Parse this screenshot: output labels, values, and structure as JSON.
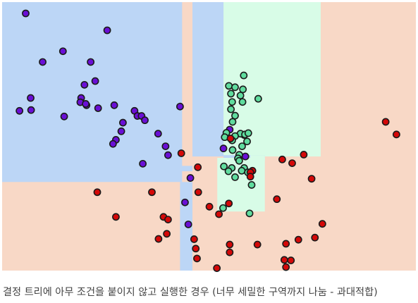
{
  "caption": "결정 트리에 아무 조건을 붙이지 않고 실행한 경우 (너무 세밀한 구역까지 나눔 - 과대적합)",
  "colors": {
    "class_0_point": "#6a0fd6",
    "class_1_point": "#5fdc9e",
    "class_2_point": "#d40808",
    "class_0_region": "#bcd6f6",
    "class_1_region": "#d8fce7",
    "class_2_region": "#f8d8c6",
    "point_edge": "#1a1a1a"
  },
  "chart_data": {
    "type": "scatter",
    "title": "",
    "xlabel": "",
    "ylabel": "",
    "xlim": [
      0,
      100
    ],
    "ylim": [
      0,
      100
    ],
    "grid": false,
    "legend": "none",
    "regions": [
      {
        "class": 2,
        "x": [
          0,
          100
        ],
        "y": [
          0,
          100
        ]
      },
      {
        "class": 0,
        "x": [
          0,
          43.5
        ],
        "y": [
          33,
          100
        ]
      },
      {
        "class": 1,
        "x": [
          53.5,
          77
        ],
        "y": [
          42.5,
          100
        ]
      },
      {
        "class": 0,
        "x": [
          46,
          53.5
        ],
        "y": [
          42.5,
          100
        ]
      },
      {
        "class": 0,
        "x": [
          53.5,
          63.5
        ],
        "y": [
          41,
          43
        ]
      },
      {
        "class": 0,
        "x": [
          43,
          46
        ],
        "y": [
          37,
          39
        ]
      },
      {
        "class": 0,
        "x": [
          43,
          46
        ],
        "y": [
          0,
          33
        ]
      },
      {
        "class": 1,
        "x": [
          52,
          63.5
        ],
        "y": [
          22,
          42
        ]
      },
      {
        "class": 1,
        "x": [
          60,
          63.5
        ],
        "y": [
          41,
          43
        ]
      }
    ],
    "series": [
      {
        "class": 0,
        "points": [
          [
            5.7,
            95.8
          ],
          [
            25.4,
            89.5
          ],
          [
            9.8,
            77.7
          ],
          [
            14.7,
            81.7
          ],
          [
            21.4,
            77.7
          ],
          [
            22.5,
            70.6
          ],
          [
            19.9,
            69.2
          ],
          [
            6.9,
            64.3
          ],
          [
            4.2,
            59.5
          ],
          [
            7.0,
            59.8
          ],
          [
            15.0,
            57.4
          ],
          [
            19.1,
            64.3
          ],
          [
            20.4,
            61.6
          ],
          [
            18.9,
            62.7
          ],
          [
            20.2,
            62.1
          ],
          [
            23.2,
            60.5
          ],
          [
            27.1,
            61.6
          ],
          [
            32.0,
            59.5
          ],
          [
            32.7,
            57.6
          ],
          [
            33.7,
            57.6
          ],
          [
            34.5,
            56.0
          ],
          [
            29.2,
            55.1
          ],
          [
            28.8,
            51.9
          ],
          [
            27.5,
            48.7
          ],
          [
            37.7,
            51.0
          ],
          [
            43.0,
            61.1
          ],
          [
            26.8,
            47.2
          ],
          [
            39.5,
            46.3
          ],
          [
            40.1,
            43.0
          ],
          [
            34.0,
            39.8
          ],
          [
            45.5,
            34.5
          ],
          [
            44.2,
            25.4
          ],
          [
            45.0,
            17.2
          ],
          [
            53.5,
            45.5
          ],
          [
            58.5,
            50.5
          ],
          [
            58.8,
            42.5
          ],
          [
            55.0,
            52.5
          ]
        ]
      },
      {
        "class": 1,
        "points": [
          [
            58.4,
            72.7
          ],
          [
            54.8,
            68.8
          ],
          [
            56.3,
            68.3
          ],
          [
            58.2,
            67.5
          ],
          [
            55.3,
            65.9
          ],
          [
            57.6,
            65.2
          ],
          [
            61.9,
            64.0
          ],
          [
            58.1,
            62.8
          ],
          [
            55.6,
            62.8
          ],
          [
            55.3,
            60.1
          ],
          [
            56.3,
            57.7
          ],
          [
            55.7,
            55.4
          ],
          [
            54.2,
            51.3
          ],
          [
            57.6,
            51.0
          ],
          [
            58.7,
            50.7
          ],
          [
            59.5,
            51.2
          ],
          [
            56.3,
            50.1
          ],
          [
            53.8,
            49.7
          ],
          [
            55.6,
            48.5
          ],
          [
            59.2,
            48.1
          ],
          [
            58.0,
            46.3
          ],
          [
            55.7,
            44.9
          ],
          [
            57.3,
            43.1
          ],
          [
            57.0,
            41.8
          ],
          [
            57.3,
            40.9
          ],
          [
            53.6,
            38.8
          ],
          [
            55.5,
            38.2
          ],
          [
            58.5,
            38.2
          ],
          [
            57.9,
            37.2
          ],
          [
            54.7,
            37.0
          ],
          [
            59.4,
            36.6
          ],
          [
            56.3,
            34.8
          ],
          [
            60.3,
            31.9
          ],
          [
            53.4,
            23.3
          ],
          [
            59.8,
            21.3
          ]
        ]
      },
      {
        "class": 2,
        "points": [
          [
            92.7,
            55.4
          ],
          [
            95.3,
            50.7
          ],
          [
            55.2,
            49.2
          ],
          [
            43.3,
            43.7
          ],
          [
            47.3,
            38.5
          ],
          [
            72.9,
            43.2
          ],
          [
            67.7,
            41.4
          ],
          [
            70.1,
            40.0
          ],
          [
            60.5,
            37.2
          ],
          [
            60.0,
            36.6
          ],
          [
            74.8,
            34.2
          ],
          [
            60.0,
            35.0
          ],
          [
            23.0,
            29.2
          ],
          [
            36.2,
            29.2
          ],
          [
            47.4,
            29.2
          ],
          [
            66.4,
            26.6
          ],
          [
            50.1,
            23.8
          ],
          [
            52.4,
            21.0
          ],
          [
            27.5,
            20.0
          ],
          [
            39.0,
            20.0
          ],
          [
            40.1,
            19.0
          ],
          [
            77.4,
            17.4
          ],
          [
            39.8,
            13.7
          ],
          [
            37.8,
            11.8
          ],
          [
            46.4,
            11.7
          ],
          [
            75.6,
            12.3
          ],
          [
            55.0,
            9.7
          ],
          [
            61.7,
            9.7
          ],
          [
            68.6,
            10.0
          ],
          [
            46.8,
            8.2
          ],
          [
            55.0,
            6.8
          ],
          [
            47.1,
            4.5
          ],
          [
            51.9,
            0.9
          ],
          [
            68.2,
            4.0
          ],
          [
            68.6,
            1.3
          ],
          [
            69.8,
            3.8
          ],
          [
            54.8,
            25.0
          ],
          [
            71.6,
            11.5
          ]
        ]
      }
    ]
  }
}
